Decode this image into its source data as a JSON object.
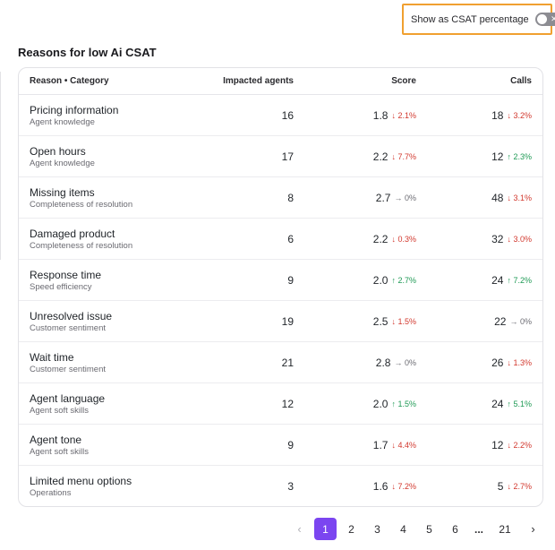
{
  "toggle": {
    "label": "Show as CSAT percentage",
    "on": false,
    "off_icon": "✕"
  },
  "section_title": "Reasons for low Ai CSAT",
  "table": {
    "headers": {
      "reason": "Reason • Category",
      "agents": "Impacted agents",
      "score": "Score",
      "calls": "Calls"
    },
    "rows": [
      {
        "name": "Pricing information",
        "category": "Agent knowledge",
        "agents": "16",
        "score": "1.8",
        "score_delta": "↓ 2.1%",
        "score_dir": "down",
        "calls": "18",
        "calls_delta": "↓ 3.2%",
        "calls_dir": "down"
      },
      {
        "name": "Open hours",
        "category": "Agent knowledge",
        "agents": "17",
        "score": "2.2",
        "score_delta": "↓ 7.7%",
        "score_dir": "down",
        "calls": "12",
        "calls_delta": "↑ 2.3%",
        "calls_dir": "up"
      },
      {
        "name": "Missing items",
        "category": "Completeness of resolution",
        "agents": "8",
        "score": "2.7",
        "score_delta": "→ 0%",
        "score_dir": "flat",
        "calls": "48",
        "calls_delta": "↓ 3.1%",
        "calls_dir": "down"
      },
      {
        "name": "Damaged product",
        "category": "Completeness of resolution",
        "agents": "6",
        "score": "2.2",
        "score_delta": "↓ 0.3%",
        "score_dir": "down",
        "calls": "32",
        "calls_delta": "↓ 3.0%",
        "calls_dir": "down"
      },
      {
        "name": "Response time",
        "category": "Speed efficiency",
        "agents": "9",
        "score": "2.0",
        "score_delta": "↑ 2.7%",
        "score_dir": "up",
        "calls": "24",
        "calls_delta": "↑ 7.2%",
        "calls_dir": "up"
      },
      {
        "name": "Unresolved issue",
        "category": "Customer sentiment",
        "agents": "19",
        "score": "2.5",
        "score_delta": "↓ 1.5%",
        "score_dir": "down",
        "calls": "22",
        "calls_delta": "→ 0%",
        "calls_dir": "flat"
      },
      {
        "name": "Wait time",
        "category": "Customer sentiment",
        "agents": "21",
        "score": "2.8",
        "score_delta": "→ 0%",
        "score_dir": "flat",
        "calls": "26",
        "calls_delta": "↓ 1.3%",
        "calls_dir": "down"
      },
      {
        "name": "Agent language",
        "category": "Agent soft skills",
        "agents": "12",
        "score": "2.0",
        "score_delta": "↑ 1.5%",
        "score_dir": "up",
        "calls": "24",
        "calls_delta": "↑ 5.1%",
        "calls_dir": "up"
      },
      {
        "name": "Agent tone",
        "category": "Agent soft skills",
        "agents": "9",
        "score": "1.7",
        "score_delta": "↓ 4.4%",
        "score_dir": "down",
        "calls": "12",
        "calls_delta": "↓ 2.2%",
        "calls_dir": "down"
      },
      {
        "name": "Limited menu options",
        "category": "Operations",
        "agents": "3",
        "score": "1.6",
        "score_delta": "↓ 7.2%",
        "score_dir": "down",
        "calls": "5",
        "calls_delta": "↓ 2.7%",
        "calls_dir": "down"
      }
    ]
  },
  "pagination": {
    "prev_icon": "‹",
    "next_icon": "›",
    "pages": [
      "1",
      "2",
      "3",
      "4",
      "5",
      "6"
    ],
    "ellipsis": "...",
    "last": "21",
    "current": "1"
  },
  "colors": {
    "accent": "#7b45f0",
    "highlight_border": "#f0a030",
    "down": "#d2382e",
    "up": "#1f9a55"
  }
}
